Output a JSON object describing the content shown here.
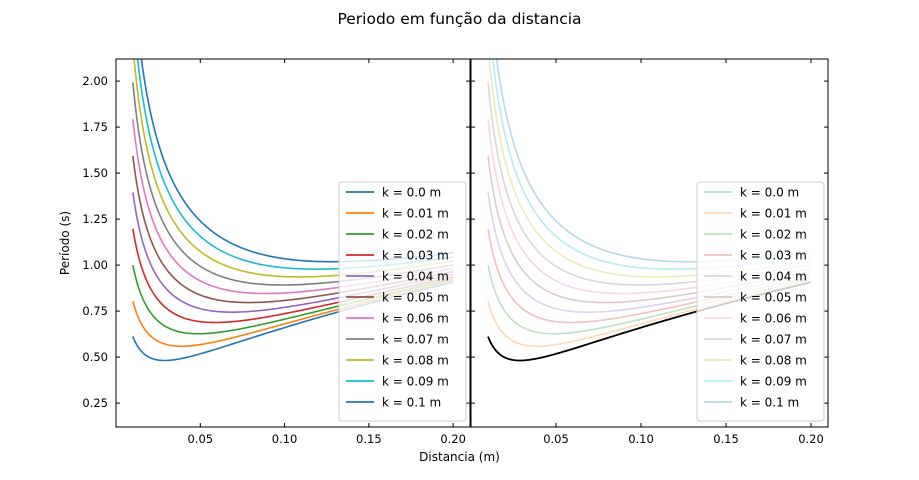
{
  "figure": {
    "title": "Periodo em função da distancia",
    "xlabel": "Distancia (m)",
    "ylabel": "Período (s)"
  },
  "chart_data": [
    {
      "type": "line",
      "xlim": [
        0.0,
        0.21
      ],
      "ylim": [
        0.12,
        2.12
      ],
      "x_ticks": [
        0.05,
        0.1,
        0.15,
        0.2
      ],
      "x_tick_labels": [
        "0.05",
        "0.10",
        "0.15",
        "0.20"
      ],
      "y_ticks": [
        0.25,
        0.5,
        0.75,
        1.0,
        1.25,
        1.5,
        1.75,
        2.0
      ],
      "y_tick_labels": [
        "0.25",
        "0.50",
        "0.75",
        "1.00",
        "1.25",
        "1.50",
        "1.75",
        "2.00"
      ],
      "x_range": [
        0.01,
        0.2
      ],
      "grid": false,
      "legend_position": "lower-right",
      "series": [
        {
          "name": "k = 0.0 m",
          "k": 0.0,
          "color": "#1f77b4",
          "opacity": 1
        },
        {
          "name": "k = 0.01 m",
          "k": 0.01,
          "color": "#ff7f0e",
          "opacity": 1
        },
        {
          "name": "k = 0.02 m",
          "k": 0.02,
          "color": "#2ca02c",
          "opacity": 1
        },
        {
          "name": "k = 0.03 m",
          "k": 0.03,
          "color": "#d62728",
          "opacity": 1
        },
        {
          "name": "k = 0.04 m",
          "k": 0.04,
          "color": "#9467bd",
          "opacity": 1
        },
        {
          "name": "k = 0.05 m",
          "k": 0.05,
          "color": "#8c564b",
          "opacity": 1
        },
        {
          "name": "k = 0.06 m",
          "k": 0.06,
          "color": "#e377c2",
          "opacity": 1
        },
        {
          "name": "k = 0.07 m",
          "k": 0.07,
          "color": "#7f7f7f",
          "opacity": 1
        },
        {
          "name": "k = 0.08 m",
          "k": 0.08,
          "color": "#bcbd22",
          "opacity": 1
        },
        {
          "name": "k = 0.09 m",
          "k": 0.09,
          "color": "#17becf",
          "opacity": 1
        },
        {
          "name": "k = 0.1 m",
          "k": 0.1,
          "color": "#1f77b4",
          "opacity": 1
        }
      ]
    },
    {
      "type": "line",
      "xlim": [
        0.0,
        0.21
      ],
      "ylim": [
        0.12,
        2.12
      ],
      "x_ticks": [
        0.05,
        0.1,
        0.15,
        0.2
      ],
      "x_tick_labels": [
        "0.05",
        "0.10",
        "0.15",
        "0.20"
      ],
      "y_ticks": [
        0.25,
        0.5,
        0.75,
        1.0,
        1.25,
        1.5,
        1.75,
        2.0
      ],
      "x_range": [
        0.01,
        0.2
      ],
      "grid": false,
      "legend_position": "lower-right",
      "highlight": {
        "k": 0.0,
        "color": "#000000"
      },
      "series": [
        {
          "name": "k = 0.0 m",
          "k": 0.0,
          "color": "#1f77b4",
          "opacity": 0.3
        },
        {
          "name": "k = 0.01 m",
          "k": 0.01,
          "color": "#ff7f0e",
          "opacity": 0.3
        },
        {
          "name": "k = 0.02 m",
          "k": 0.02,
          "color": "#2ca02c",
          "opacity": 0.3
        },
        {
          "name": "k = 0.03 m",
          "k": 0.03,
          "color": "#d62728",
          "opacity": 0.3
        },
        {
          "name": "k = 0.04 m",
          "k": 0.04,
          "color": "#9467bd",
          "opacity": 0.3
        },
        {
          "name": "k = 0.05 m",
          "k": 0.05,
          "color": "#8c564b",
          "opacity": 0.3
        },
        {
          "name": "k = 0.06 m",
          "k": 0.06,
          "color": "#e377c2",
          "opacity": 0.3
        },
        {
          "name": "k = 0.07 m",
          "k": 0.07,
          "color": "#7f7f7f",
          "opacity": 0.3
        },
        {
          "name": "k = 0.08 m",
          "k": 0.08,
          "color": "#bcbd22",
          "opacity": 0.3
        },
        {
          "name": "k = 0.09 m",
          "k": 0.09,
          "color": "#17becf",
          "opacity": 0.3
        },
        {
          "name": "k = 0.1 m",
          "k": 0.1,
          "color": "#1f77b4",
          "opacity": 0.3
        }
      ]
    }
  ]
}
